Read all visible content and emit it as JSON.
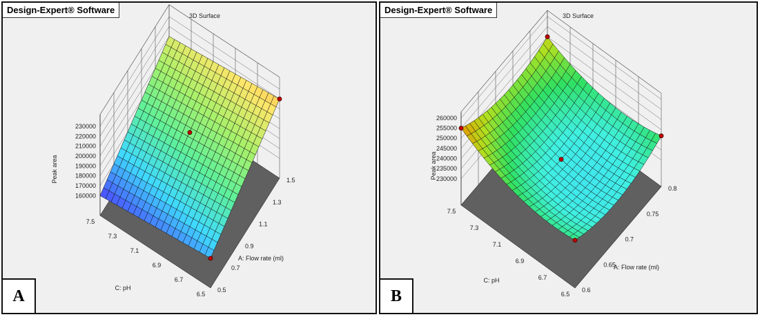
{
  "panels": [
    {
      "brand": "Design-Expert® Software",
      "title": "3D Surface",
      "letter": "A"
    },
    {
      "brand": "Design-Expert® Software",
      "title": "3D Surface",
      "letter": "B"
    }
  ],
  "chart_data": [
    {
      "type": "surface3d",
      "title": "3D Surface",
      "zlabel": "Peak area",
      "xlabel": "A: Flow rate (ml)",
      "ylabel": "C: pH",
      "x_ticks": [
        "0.5",
        "0.7",
        "0.9",
        "1.1",
        "1.3",
        "1.5"
      ],
      "y_ticks": [
        "7.5",
        "7.3",
        "7.1",
        "6.9",
        "6.7",
        "6.5"
      ],
      "z_ticks": [
        "160000",
        "170000",
        "180000",
        "190000",
        "200000",
        "210000",
        "220000",
        "230000"
      ],
      "xlim": [
        0.5,
        1.5
      ],
      "ylim": [
        6.5,
        7.5
      ],
      "zlim": [
        160000,
        230000
      ],
      "surface_model": {
        "form": "linear",
        "z_at_flow_min_pH_max": 160000,
        "slope_per_flow_frac": 50000,
        "slope_per_pH_drop_frac": 10000
      },
      "design_points": [
        {
          "flow": 1.0,
          "pH": 7.0,
          "z": 205000
        },
        {
          "flow": 0.5,
          "pH": 6.5,
          "z": 170000
        },
        {
          "flow": 1.5,
          "pH": 6.5,
          "z": 220000
        }
      ],
      "colormap": [
        "#4a4aff",
        "#3fd9ff",
        "#5ef09a",
        "#a8f06a",
        "#ffe66a",
        "#f08a20"
      ]
    },
    {
      "type": "surface3d",
      "title": "3D Surface",
      "zlabel": "Peak area",
      "xlabel": "A: Flow rate (ml)",
      "ylabel": "C: pH",
      "x_ticks": [
        "0.6",
        "0.65",
        "0.7",
        "0.75",
        "0.8"
      ],
      "y_ticks": [
        "7.5",
        "7.3",
        "7.1",
        "6.9",
        "6.7",
        "6.5"
      ],
      "z_ticks": [
        "230000",
        "235000",
        "240000",
        "245000",
        "250000",
        "255000",
        "260000"
      ],
      "xlim": [
        0.6,
        0.8
      ],
      "ylim": [
        6.5,
        7.5
      ],
      "zlim": [
        230000,
        260000
      ],
      "surface_model": {
        "form": "quadratic",
        "intercept": 235000,
        "A": -900,
        "C": 5600,
        "A2": 6000,
        "C2": 5900,
        "AC": -1600
      },
      "design_points": [
        {
          "flow": 0.7,
          "pH": 7.0,
          "z": 235000
        },
        {
          "flow": 0.6,
          "pH": 7.5,
          "z": 255000
        },
        {
          "flow": 0.6,
          "pH": 6.5,
          "z": 240600
        },
        {
          "flow": 0.8,
          "pH": 6.5,
          "z": 242000
        },
        {
          "flow": 0.8,
          "pH": 7.5,
          "z": 250000
        }
      ],
      "colormap": [
        "#3fd9ff",
        "#40f0e0",
        "#30e060",
        "#b0e020",
        "#e0a000",
        "#c04000"
      ]
    }
  ]
}
